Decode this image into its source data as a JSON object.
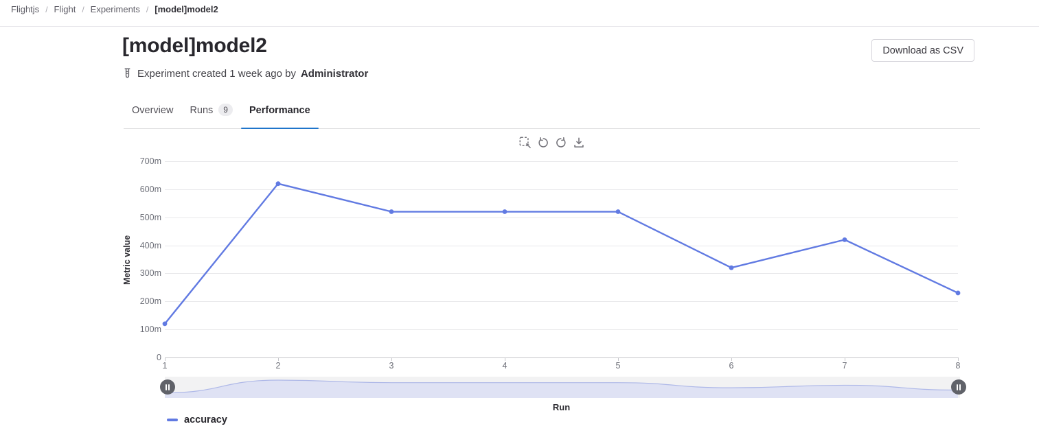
{
  "breadcrumb": {
    "separator": "/",
    "items": [
      "Flightjs",
      "Flight",
      "Experiments",
      "[model]model2"
    ]
  },
  "header": {
    "title": "[model]model2",
    "download_button": "Download as CSV",
    "meta_prefix": "Experiment created 1 week ago by",
    "meta_author": "Administrator"
  },
  "tabs": [
    {
      "label": "Overview",
      "active": false
    },
    {
      "label": "Runs",
      "badge": "9",
      "active": false
    },
    {
      "label": "Performance",
      "active": true
    }
  ],
  "chart_toolbar": {
    "icons": [
      "marquee-zoom-icon",
      "undo-icon",
      "redo-icon",
      "download-icon"
    ]
  },
  "colors": {
    "accent_blue": "#1f75cb",
    "line_blue": "#617ae2",
    "mini_area_fill": "#dfe2f4",
    "mini_area_stroke": "#aeb8e8",
    "grid": "#e8e8ea",
    "axis": "#c6c6ca"
  },
  "chart_data": {
    "type": "line",
    "title": "",
    "xlabel": "Run",
    "ylabel": "Metric value",
    "x": [
      1,
      2,
      3,
      4,
      5,
      6,
      7,
      8
    ],
    "xtick_labels": [
      "1",
      "2",
      "3",
      "4",
      "5",
      "6",
      "7",
      "8"
    ],
    "series": [
      {
        "name": "accuracy",
        "color": "#617ae2",
        "values": [
          0.12,
          0.62,
          0.52,
          0.52,
          0.52,
          0.32,
          0.42,
          0.23
        ]
      }
    ],
    "ylim": [
      0,
      0.7
    ],
    "yticks": [
      {
        "label": "0",
        "value": 0
      },
      {
        "label": "100m",
        "value": 0.1
      },
      {
        "label": "200m",
        "value": 0.2
      },
      {
        "label": "300m",
        "value": 0.3
      },
      {
        "label": "400m",
        "value": 0.4
      },
      {
        "label": "500m",
        "value": 0.5
      },
      {
        "label": "600m",
        "value": 0.6
      },
      {
        "label": "700m",
        "value": 0.7
      }
    ],
    "grid": true,
    "legend_position": "bottom-left",
    "has_datazoom_slider": true
  }
}
